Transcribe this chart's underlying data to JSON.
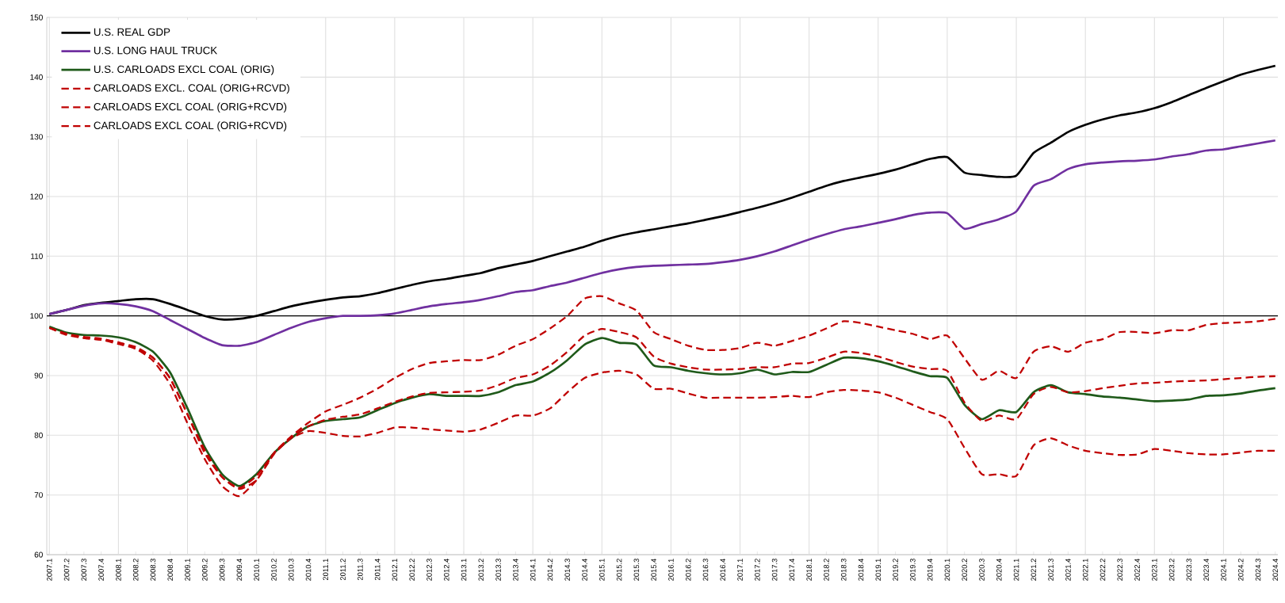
{
  "chart_data": {
    "type": "line",
    "categories": [
      "2007.1",
      "2007.2",
      "2007.3",
      "2007.4",
      "2008.1",
      "2008.2",
      "2008.3",
      "2008.4",
      "2009.1",
      "2009.2",
      "2009.3",
      "2009.4",
      "2010.1",
      "2010.2",
      "2010.3",
      "2010.4",
      "2011.1",
      "2011.2",
      "2011.3",
      "2011.4",
      "2012.1",
      "2012.2",
      "2012.3",
      "2012.4",
      "2013.1",
      "2013.2",
      "2013.3",
      "2013.4",
      "2014.1",
      "2014.2",
      "2014.3",
      "2014.4",
      "2015.1",
      "2015.2",
      "2015.3",
      "2015.4",
      "2016.1",
      "2016.2",
      "2016.3",
      "2016.4",
      "2017.1",
      "2017.2",
      "2017.3",
      "2017.4",
      "2018.1",
      "2018.2",
      "2018.3",
      "2018.4",
      "2019.1",
      "2019.2",
      "2019.3",
      "2019.4",
      "2020.1",
      "2020.2",
      "2020.3",
      "2020.4",
      "2021.1",
      "2021.2",
      "2021.3",
      "2021.4",
      "2022.1",
      "2022.2",
      "2022.3",
      "2022.4",
      "2023.1",
      "2023.2",
      "2023.3",
      "2023.4",
      "2024.1",
      "2024.2",
      "2024.3",
      "2024.4"
    ],
    "series": [
      {
        "name": "U.S. REAL GDP",
        "color": "#000000",
        "line_style": "solid",
        "values": [
          100.3,
          101,
          101.8,
          102.2,
          102.5,
          102.8,
          102.8,
          102,
          101,
          100,
          99.4,
          99.5,
          100,
          100.8,
          101.6,
          102.2,
          102.7,
          103.1,
          103.3,
          103.8,
          104.5,
          105.2,
          105.8,
          106.2,
          106.7,
          107.2,
          108,
          108.6,
          109.2,
          110,
          110.8,
          111.6,
          112.6,
          113.4,
          114,
          114.5,
          115,
          115.5,
          116.1,
          116.7,
          117.4,
          118.1,
          118.9,
          119.8,
          120.8,
          121.8,
          122.6,
          123.2,
          123.8,
          124.5,
          125.4,
          126.3,
          126.6,
          124,
          123.6,
          123.3,
          123.5,
          127.3,
          129,
          130.8,
          132,
          132.9,
          133.6,
          134.1,
          134.8,
          135.8,
          137,
          138.2,
          139.3,
          140.4,
          141.2,
          141.9
        ]
      },
      {
        "name": "U.S. LONG HAUL TRUCK",
        "color": "#7030a0",
        "line_style": "solid",
        "values": [
          100.3,
          101,
          101.7,
          102.1,
          102,
          101.6,
          100.8,
          99.3,
          97.8,
          96.3,
          95.1,
          95,
          95.6,
          96.8,
          98,
          99,
          99.6,
          100,
          100,
          100.1,
          100.4,
          101,
          101.6,
          102,
          102.3,
          102.7,
          103.3,
          104,
          104.3,
          105,
          105.6,
          106.4,
          107.2,
          107.8,
          108.2,
          108.4,
          108.5,
          108.6,
          108.7,
          109,
          109.4,
          110,
          110.8,
          111.8,
          112.8,
          113.7,
          114.5,
          115,
          115.6,
          116.2,
          116.9,
          117.3,
          117.2,
          114.6,
          115.4,
          116.2,
          117.5,
          121.8,
          122.9,
          124.6,
          125.4,
          125.7,
          125.9,
          126,
          126.2,
          126.7,
          127.1,
          127.7,
          127.9,
          128.4,
          128.9,
          129.4
        ]
      },
      {
        "name": "U.S. CARLOADS EXCL COAL (ORIG)",
        "color": "#1f5a1a",
        "line_style": "solid",
        "values": [
          98.2,
          97.2,
          96.8,
          96.7,
          96.4,
          95.6,
          94,
          90.5,
          84.5,
          78,
          73.5,
          71.5,
          73.5,
          77,
          79.5,
          81.5,
          82.4,
          82.7,
          83,
          84.2,
          85.4,
          86.3,
          86.9,
          86.6,
          86.6,
          86.6,
          87.2,
          88.4,
          89,
          90.5,
          92.6,
          95.2,
          96.3,
          95.5,
          95.2,
          91.7,
          91.4,
          90.8,
          90.4,
          90.2,
          90.4,
          91,
          90.2,
          90.6,
          90.6,
          91.8,
          93,
          92.9,
          92.4,
          91.6,
          90.7,
          89.9,
          89.6,
          85.1,
          82.7,
          84.2,
          83.9,
          87.2,
          88.4,
          87.2,
          86.9,
          86.5,
          86.3,
          86,
          85.7,
          85.8,
          86,
          86.6,
          86.7,
          87,
          87.5,
          87.9
        ]
      },
      {
        "name": "CARLOADS EXCL. COAL (ORIG+RCVD)",
        "color": "#c00000",
        "line_style": "dashed",
        "values": [
          98,
          97,
          96.3,
          96,
          95.6,
          94.5,
          93,
          89.5,
          83.5,
          77.5,
          73,
          71,
          72.5,
          76.8,
          79.5,
          80.7,
          80.4,
          79.9,
          79.8,
          80.4,
          81.3,
          81.3,
          81,
          80.8,
          80.6,
          81,
          82.1,
          83.3,
          83.3,
          84.5,
          87.2,
          89.6,
          90.5,
          90.8,
          90.2,
          87.8,
          87.8,
          87,
          86.3,
          86.3,
          86.3,
          86.3,
          86.4,
          86.6,
          86.4,
          87.2,
          87.6,
          87.5,
          87.2,
          86.3,
          85.1,
          83.9,
          82.7,
          77.9,
          73.5,
          73.5,
          73.2,
          78.3,
          79.5,
          78.3,
          77.4,
          77,
          76.7,
          76.8,
          77.7,
          77.4,
          77,
          76.8,
          76.8,
          77.1,
          77.4,
          77.4
        ]
      },
      {
        "name": "CARLOADS EXCL COAL (ORIG+RCVD)",
        "color": "#c00000",
        "line_style": "dashed",
        "values": [
          98,
          96.8,
          96.3,
          96,
          95.3,
          94.5,
          92.5,
          88.5,
          82,
          76,
          71.5,
          69.8,
          72.5,
          77,
          79.8,
          82.1,
          84,
          85.1,
          86.3,
          87.8,
          89.6,
          91.1,
          92.1,
          92.4,
          92.6,
          92.6,
          93.5,
          95,
          96.1,
          97.9,
          100,
          102.9,
          103.3,
          102.1,
          100.9,
          97.3,
          96.1,
          95,
          94.3,
          94.3,
          94.6,
          95.5,
          95,
          95.8,
          96.7,
          97.9,
          99.1,
          98.8,
          98.2,
          97.6,
          97,
          96.1,
          96.7,
          92.9,
          89.3,
          90.8,
          89.6,
          94,
          94.9,
          94,
          95.5,
          96.1,
          97.3,
          97.3,
          97.1,
          97.6,
          97.6,
          98.5,
          98.8,
          98.9,
          99.1,
          99.5
        ]
      },
      {
        "name": "CARLOADS EXCL COAL (ORIG+RCVD)",
        "color": "#c00000",
        "line_style": "dashed",
        "values": [
          98,
          97,
          96.5,
          96.2,
          95.5,
          94.8,
          93,
          89.5,
          83.5,
          77,
          73,
          71.2,
          73.2,
          77,
          79.6,
          81.5,
          82.6,
          83.1,
          83.5,
          84.5,
          85.6,
          86.5,
          87.1,
          87.2,
          87.3,
          87.5,
          88.4,
          89.6,
          90.2,
          91.7,
          94,
          96.7,
          97.8,
          97.3,
          96.4,
          93.2,
          92,
          91.4,
          91,
          91,
          91.1,
          91.4,
          91.4,
          92,
          92.1,
          93,
          94,
          93.8,
          93.2,
          92.3,
          91.5,
          91.1,
          90.8,
          85.5,
          82.4,
          83.3,
          82.7,
          86.9,
          88.1,
          87.2,
          87.4,
          87.9,
          88.3,
          88.7,
          88.8,
          89,
          89.1,
          89.2,
          89.4,
          89.6,
          89.8,
          89.9
        ]
      }
    ],
    "ylim": [
      60,
      150
    ],
    "yticks": [
      60,
      70,
      80,
      90,
      100,
      110,
      120,
      130,
      140,
      150
    ],
    "grid": true,
    "legend": "top left",
    "ref_lines": [
      {
        "axis": "y",
        "value": 100,
        "color": "#000000"
      }
    ]
  }
}
